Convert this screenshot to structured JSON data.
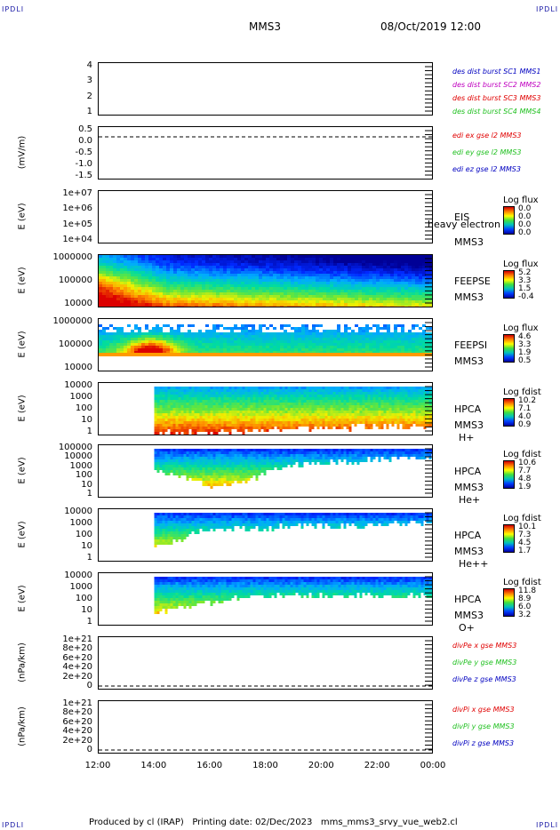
{
  "corners": {
    "tl": "IPDLI",
    "tr": "IPDLI",
    "bl": "IPDLI",
    "br": "IPDLI"
  },
  "header": {
    "spacecraft": "MMS3",
    "datetime": "08/Oct/2019 12:00"
  },
  "footer": {
    "text": "Produced by cl (IRAP)   Printing date: 02/Dec/2023   mms_mms3_srvy_vue_web2.cl"
  },
  "colors": {
    "blue": "#0000c0",
    "magenta": "#c000c0",
    "red": "#e00000",
    "green": "#20c020"
  },
  "chart_data": [
    {
      "type": "line",
      "panel": "burst",
      "yticks": [
        "4",
        "3",
        "2",
        "1"
      ],
      "ylabel": "",
      "legend": [
        "des dist burst SC1 MMS1",
        "des dist burst SC2 MMS2",
        "des dist burst SC3 MMS3",
        "des dist burst SC4 MMS4"
      ],
      "legend_colors": [
        "#0000c0",
        "#c000c0",
        "#e00000",
        "#20c020"
      ]
    },
    {
      "type": "line",
      "panel": "edi",
      "yticks": [
        "0.5",
        "0.0",
        "-0.5",
        "-1.0",
        "-1.5"
      ],
      "ylabel": "(mV/m)",
      "legend": [
        "edi ex gse l2 MMS3",
        "edi ey gse l2 MMS3",
        "edi ez gse l2 MMS3"
      ],
      "legend_colors": [
        "#e00000",
        "#20c020",
        "#0000c0"
      ]
    },
    {
      "type": "heatmap",
      "panel": "eis",
      "yticks": [
        "1e+07",
        "1e+06",
        "1e+05",
        "1e+04"
      ],
      "ylabel": "E (eV)",
      "instrument": [
        "EIS",
        "MMS3"
      ],
      "overlay": "heavy electron to",
      "cb_title": "Log flux",
      "cb_values": [
        "0.0",
        "0.0",
        "0.0",
        "0.0"
      ]
    },
    {
      "type": "heatmap",
      "panel": "feepse",
      "yticks": [
        "1000000",
        "100000",
        "10000"
      ],
      "ylabel": "E (eV)",
      "instrument": [
        "FEEPSE",
        "MMS3"
      ],
      "cb_title": "Log flux",
      "cb_values": [
        "5.2",
        "3.3",
        "1.5",
        "-0.4"
      ]
    },
    {
      "type": "heatmap",
      "panel": "feepsi",
      "yticks": [
        "1000000",
        "100000",
        "10000"
      ],
      "ylabel": "E (eV)",
      "instrument": [
        "FEEPSI",
        "MMS3"
      ],
      "cb_title": "Log flux",
      "cb_values": [
        "4.6",
        "3.3",
        "1.9",
        "0.5"
      ]
    },
    {
      "type": "heatmap",
      "panel": "hpca_h",
      "yticks": [
        "10000",
        "1000",
        "100",
        "10",
        "1"
      ],
      "ylabel": "E (eV)",
      "instrument": [
        "HPCA",
        "MMS3",
        "H+"
      ],
      "cb_title": "Log fdist",
      "cb_values": [
        "10.2",
        "7.1",
        "4.0",
        "0.9"
      ]
    },
    {
      "type": "heatmap",
      "panel": "hpca_he",
      "yticks": [
        "100000",
        "10000",
        "1000",
        "100",
        "10",
        "1"
      ],
      "ylabel": "E (eV)",
      "instrument": [
        "HPCA",
        "MMS3",
        "He+"
      ],
      "cb_title": "Log fdist",
      "cb_values": [
        "10.6",
        "7.7",
        "4.8",
        "1.9"
      ]
    },
    {
      "type": "heatmap",
      "panel": "hpca_hepp",
      "yticks": [
        "10000",
        "1000",
        "100",
        "10",
        "1"
      ],
      "ylabel": "E (eV)",
      "instrument": [
        "HPCA",
        "MMS3",
        "He++"
      ],
      "cb_title": "Log fdist",
      "cb_values": [
        "10.1",
        "7.3",
        "4.5",
        "1.7"
      ]
    },
    {
      "type": "heatmap",
      "panel": "hpca_o",
      "yticks": [
        "10000",
        "1000",
        "100",
        "10",
        "1"
      ],
      "ylabel": "E (eV)",
      "instrument": [
        "HPCA",
        "MMS3",
        "O+"
      ],
      "cb_title": "Log fdist",
      "cb_values": [
        "11.8",
        "8.9",
        "6.0",
        "3.2"
      ]
    },
    {
      "type": "line",
      "panel": "divpe",
      "yticks": [
        "1e+21",
        "8e+20",
        "6e+20",
        "4e+20",
        "2e+20",
        "0"
      ],
      "ylabel": "(nPa/km)",
      "legend": [
        "divPe x gse MMS3",
        "divPe y gse MMS3",
        "divPe z gse MMS3"
      ],
      "legend_colors": [
        "#e00000",
        "#20c020",
        "#0000c0"
      ]
    },
    {
      "type": "line",
      "panel": "divpi",
      "yticks": [
        "1e+21",
        "8e+20",
        "6e+20",
        "4e+20",
        "2e+20",
        "0"
      ],
      "ylabel": "(nPa/km)",
      "legend": [
        "divPi x gse MMS3",
        "divPi y gse MMS3",
        "divPi z gse MMS3"
      ],
      "legend_colors": [
        "#e00000",
        "#20c020",
        "#0000c0"
      ]
    }
  ],
  "xaxis": {
    "ticks": [
      "12:00",
      "14:00",
      "16:00",
      "18:00",
      "20:00",
      "22:00",
      "00:00"
    ]
  }
}
